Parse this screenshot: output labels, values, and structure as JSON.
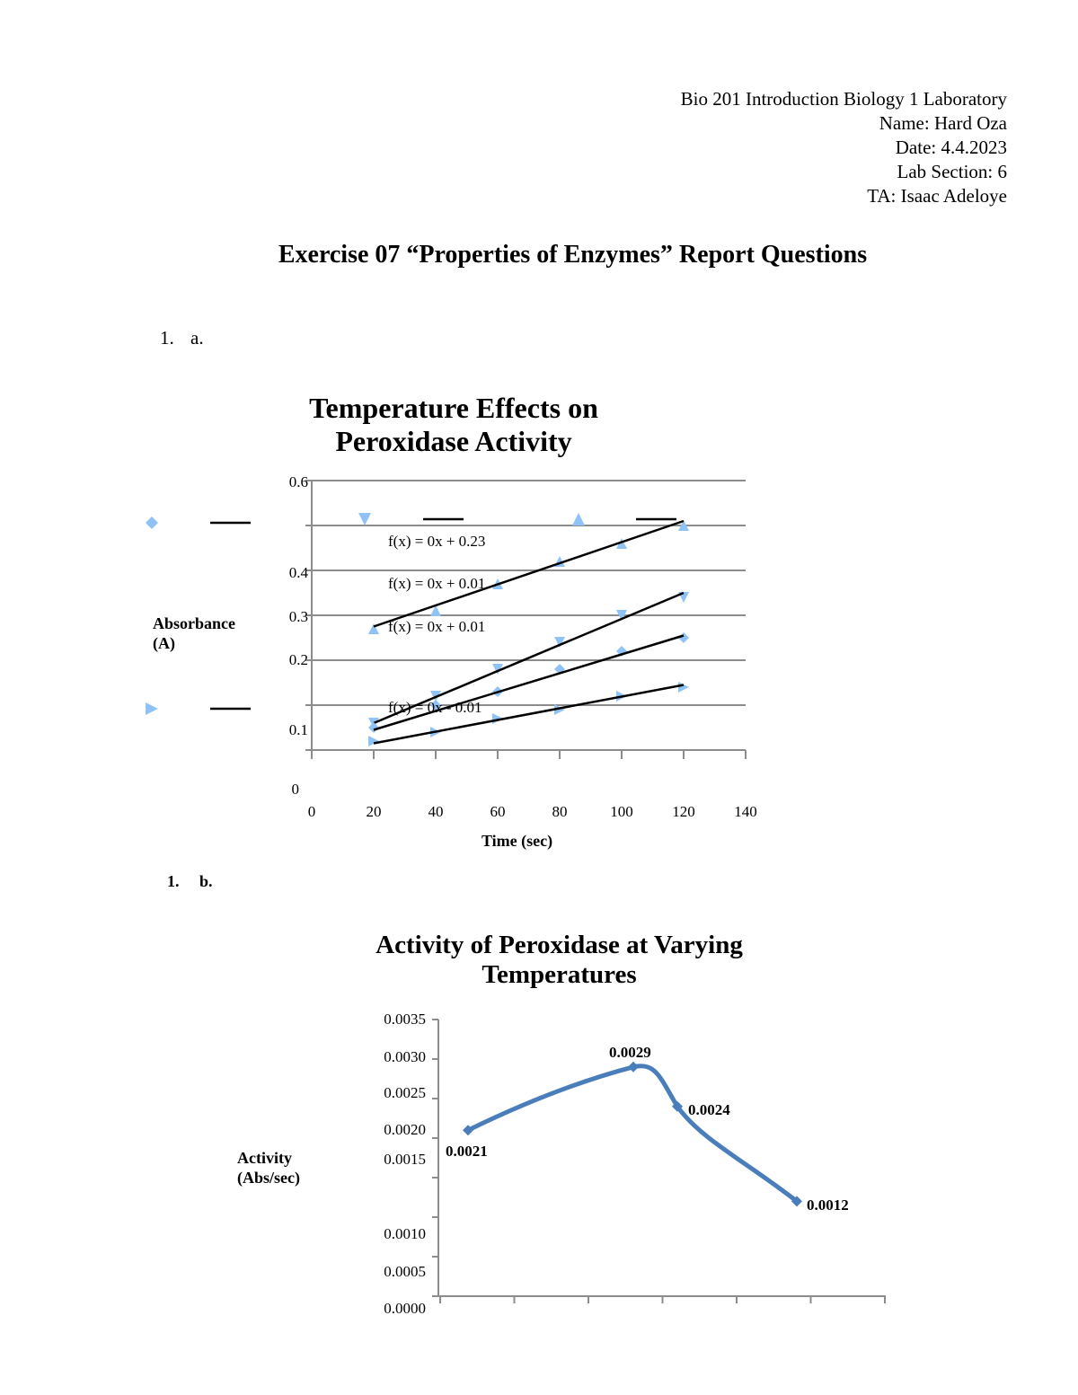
{
  "header": {
    "course": "Bio 201 Introduction Biology 1 Laboratory",
    "name": "Name: Hard Oza",
    "date": "Date: 4.4.2023",
    "section": "Lab Section: 6",
    "ta": "TA: Isaac Adeloye"
  },
  "title": "Exercise 07 “Properties of Enzymes” Report Questions",
  "q1a": {
    "num": "1.",
    "letter": "a."
  },
  "q1b": {
    "num": "1.",
    "letter": "b."
  },
  "chart_data": [
    {
      "type": "scatter",
      "title": "Temperature Effects on Peroxidase Activity",
      "xlabel": "Time (sec)",
      "ylabel": "Absorbance (A)",
      "xlim": [
        0,
        140
      ],
      "ylim": [
        0,
        0.6
      ],
      "x_ticks": [
        "0",
        "20",
        "40",
        "60",
        "80",
        "100",
        "120",
        "140"
      ],
      "y_ticks": [
        "0",
        "0.1",
        "0.2",
        "0.3",
        "0.4",
        "0.6"
      ],
      "grid": true,
      "x": [
        20,
        40,
        60,
        80,
        100,
        120
      ],
      "series": [
        {
          "marker": "triangle-up",
          "values": [
            0.27,
            0.31,
            0.37,
            0.42,
            0.46,
            0.5
          ],
          "trend": [
            0.275,
            0.51
          ],
          "equation": "f(x) = 0x + 0.23"
        },
        {
          "marker": "triangle-down",
          "values": [
            0.06,
            0.12,
            0.18,
            0.24,
            0.3,
            0.34
          ],
          "trend": [
            0.06,
            0.35
          ],
          "equation": "f(x) = 0x + 0.01"
        },
        {
          "marker": "diamond",
          "values": [
            0.05,
            0.1,
            0.13,
            0.18,
            0.22,
            0.25
          ],
          "trend": [
            0.045,
            0.255
          ],
          "equation": "f(x) = 0x + 0.01"
        },
        {
          "marker": "triangle-right",
          "values": [
            0.02,
            0.04,
            0.07,
            0.09,
            0.12,
            0.14
          ],
          "trend": [
            0.015,
            0.145
          ],
          "equation": "f(x) = 0x - 0.01"
        }
      ],
      "color": "#8fc3f5"
    },
    {
      "type": "line",
      "title": "Activity of Peroxidase at Varying Temperatures",
      "ylabel": "Activity (Abs/sec)",
      "ylim": [
        0,
        0.0035
      ],
      "y_ticks": [
        "0.0035",
        "0.0030",
        "0.0025",
        "0.0020",
        "0.0015",
        "0.0010",
        "0.0005",
        "0.0000"
      ],
      "values": [
        0.0021,
        0.0029,
        0.0024,
        0.0012
      ],
      "data_labels": [
        "0.0021",
        "0.0029",
        "0.0024",
        "0.0012"
      ],
      "color": "#4a7ebb"
    }
  ]
}
